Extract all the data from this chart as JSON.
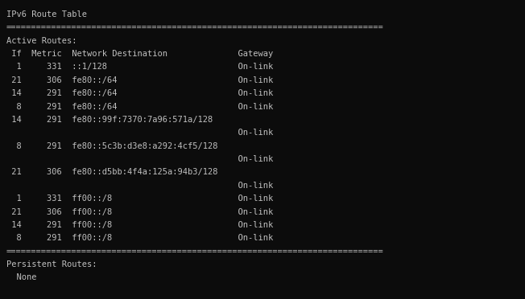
{
  "background_color": "#0c0c0c",
  "text_color": "#c0c0c0",
  "font_family": "monospace",
  "font_size": 7.5,
  "lines": [
    "IPv6 Route Table",
    "===========================================================================",
    "Active Routes:",
    " If  Metric  Network Destination              Gateway",
    "  1     331  ::1/128                          On-link",
    " 21     306  fe80::/64                        On-link",
    " 14     291  fe80::/64                        On-link",
    "  8     291  fe80::/64                        On-link",
    " 14     291  fe80::99f:7370:7a96:571a/128",
    "                                              On-link",
    "  8     291  fe80::5c3b:d3e8:a292:4cf5/128",
    "                                              On-link",
    " 21     306  fe80::d5bb:4f4a:125a:94b3/128",
    "                                              On-link",
    "  1     331  ff00::/8                         On-link",
    " 21     306  ff00::/8                         On-link",
    " 14     291  ff00::/8                         On-link",
    "  8     291  ff00::/8                         On-link",
    "===========================================================================",
    "Persistent Routes:",
    "  None"
  ]
}
